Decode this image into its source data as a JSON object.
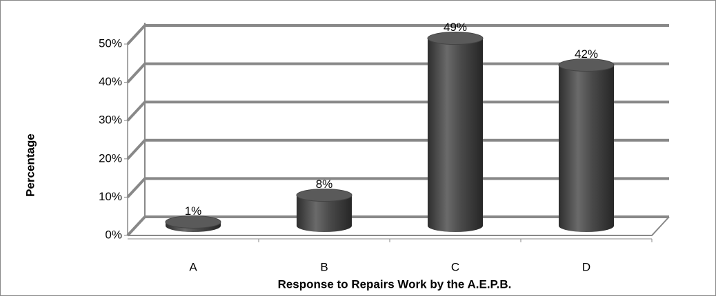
{
  "chart_data": {
    "type": "bar",
    "categories": [
      "A",
      "B",
      "C",
      "D"
    ],
    "values": [
      1,
      8,
      49,
      42
    ],
    "value_labels": [
      "1%",
      "8%",
      "49%",
      "42%"
    ],
    "color": "#4a4a4a",
    "xlabel": "Response to Repairs Work by the A.E.P.B.",
    "ylabel": "Percentage",
    "ylim": [
      0,
      50
    ],
    "yticks": [
      {
        "value": 0,
        "label": "0%"
      },
      {
        "value": 10,
        "label": "10%"
      },
      {
        "value": 20,
        "label": "20%"
      },
      {
        "value": 30,
        "label": "30%"
      },
      {
        "value": 40,
        "label": "40%"
      },
      {
        "value": 50,
        "label": "50%"
      }
    ],
    "grid": true
  }
}
